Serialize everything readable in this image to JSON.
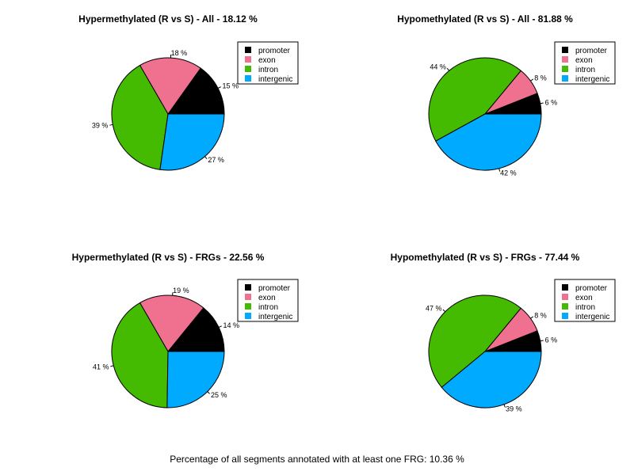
{
  "categories": [
    "promoter",
    "exon",
    "intron",
    "intergenic"
  ],
  "colors": {
    "promoter": "#000000",
    "exon": "#F07090",
    "intron": "#44BB00",
    "intergenic": "#00AAFF"
  },
  "chart_data": [
    {
      "type": "pie",
      "title": "Hypermethylated (R vs S) - All - 18.12 %",
      "categories": [
        "promoter",
        "exon",
        "intron",
        "intergenic"
      ],
      "values": [
        15,
        18,
        39,
        27
      ],
      "labels": [
        "15 %",
        "18 %",
        "39 %",
        "27 %"
      ],
      "legend": "right"
    },
    {
      "type": "pie",
      "title": "Hypomethylated (R vs S) - All -  81.88 %",
      "categories": [
        "promoter",
        "exon",
        "intron",
        "intergenic"
      ],
      "values": [
        6,
        8,
        44,
        42
      ],
      "labels": [
        "6 %",
        "8 %",
        "44 %",
        "42 %"
      ],
      "legend": "right"
    },
    {
      "type": "pie",
      "title": "Hypermethylated (R vs S) - FRGs - 22.56 %",
      "categories": [
        "promoter",
        "exon",
        "intron",
        "intergenic"
      ],
      "values": [
        14,
        19,
        41,
        25
      ],
      "labels": [
        "14 %",
        "19 %",
        "41 %",
        "25 %"
      ],
      "legend": "right"
    },
    {
      "type": "pie",
      "title": "Hypomethylated (R vs S) - FRGs - 77.44 %",
      "categories": [
        "promoter",
        "exon",
        "intron",
        "intergenic"
      ],
      "values": [
        6,
        8,
        47,
        39
      ],
      "labels": [
        "6 %",
        "8 %",
        "47 %",
        "39 %"
      ],
      "legend": "right"
    }
  ],
  "footer": "Percentage of all segments annotated with at least one FRG:  10.36 %"
}
